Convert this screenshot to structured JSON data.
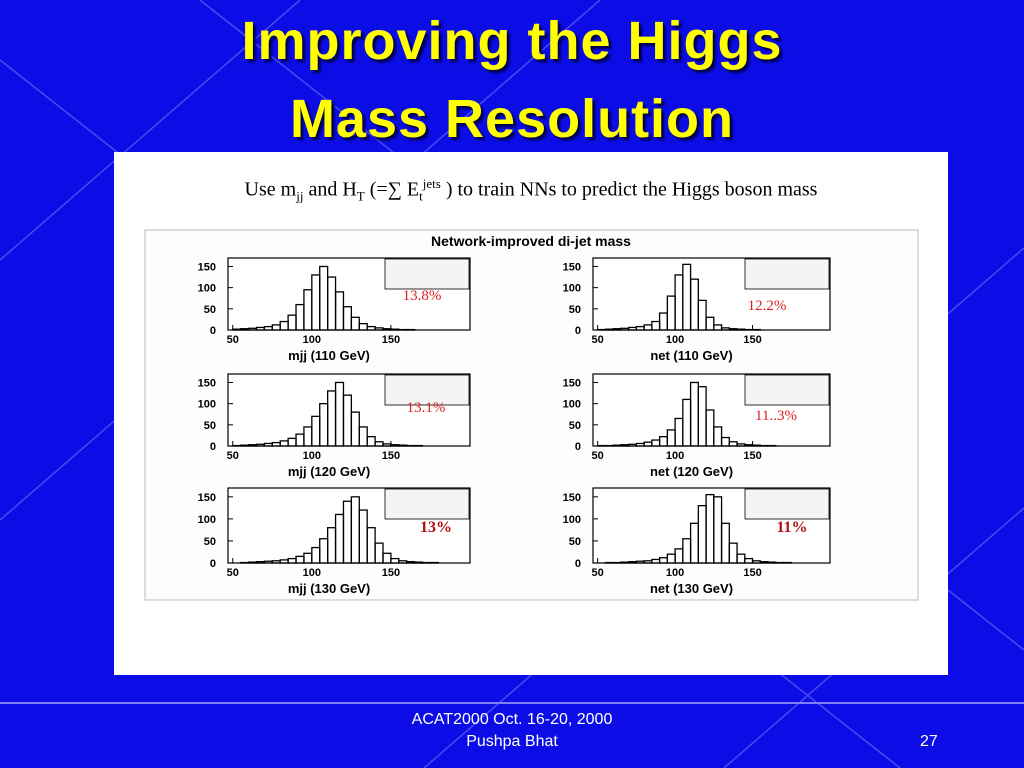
{
  "title": [
    "Improving the Higgs",
    "Mass Resolution"
  ],
  "subtitle": [
    "Use m",
    "jj",
    " and H",
    "T",
    " (=∑ E",
    "t",
    "jets",
    " ) to train NNs to predict the Higgs boson mass"
  ],
  "figure_title": "Network-improved di-jet mass",
  "chart_data": [
    {
      "type": "histogram",
      "xlabel": "mjj (110 GeV)",
      "annotation": "13.8%",
      "bins": [
        50,
        55,
        60,
        65,
        70,
        75,
        80,
        85,
        90,
        95,
        100,
        105,
        110,
        115,
        120,
        125,
        130,
        135,
        140,
        145,
        150,
        155,
        160,
        165,
        170,
        175,
        180,
        185,
        190,
        195,
        200
      ],
      "counts": [
        2,
        3,
        4,
        6,
        8,
        12,
        20,
        35,
        60,
        95,
        130,
        150,
        125,
        90,
        55,
        30,
        15,
        8,
        5,
        3,
        2,
        1,
        1,
        0,
        0,
        0,
        0,
        0,
        0,
        0
      ],
      "xlim": [
        47,
        200
      ],
      "ylim": [
        0,
        170
      ],
      "xticks": [
        50,
        100,
        150
      ],
      "yticks": [
        0,
        50,
        100,
        150
      ]
    },
    {
      "type": "histogram",
      "xlabel": "net (110 GeV)",
      "annotation": "12.2%",
      "bins": [
        50,
        55,
        60,
        65,
        70,
        75,
        80,
        85,
        90,
        95,
        100,
        105,
        110,
        115,
        120,
        125,
        130,
        135,
        140,
        145,
        150,
        155,
        160,
        165,
        170,
        175,
        180,
        185,
        190,
        195,
        200
      ],
      "counts": [
        1,
        2,
        3,
        4,
        6,
        8,
        12,
        20,
        40,
        80,
        130,
        155,
        120,
        70,
        30,
        12,
        5,
        3,
        2,
        1,
        1,
        0,
        0,
        0,
        0,
        0,
        0,
        0,
        0,
        0
      ],
      "xlim": [
        47,
        200
      ],
      "ylim": [
        0,
        170
      ],
      "xticks": [
        50,
        100,
        150
      ],
      "yticks": [
        0,
        50,
        100,
        150
      ]
    },
    {
      "type": "histogram",
      "xlabel": "mjj (120 GeV)",
      "annotation": "13.1%",
      "bins": [
        50,
        55,
        60,
        65,
        70,
        75,
        80,
        85,
        90,
        95,
        100,
        105,
        110,
        115,
        120,
        125,
        130,
        135,
        140,
        145,
        150,
        155,
        160,
        165,
        170,
        175,
        180,
        185,
        190,
        195,
        200
      ],
      "counts": [
        1,
        2,
        3,
        4,
        6,
        8,
        12,
        18,
        28,
        45,
        70,
        100,
        130,
        150,
        120,
        80,
        45,
        22,
        10,
        5,
        3,
        2,
        1,
        1,
        0,
        0,
        0,
        0,
        0,
        0
      ],
      "xlim": [
        47,
        200
      ],
      "ylim": [
        0,
        170
      ],
      "xticks": [
        50,
        100,
        150
      ],
      "yticks": [
        0,
        50,
        100,
        150
      ]
    },
    {
      "type": "histogram",
      "xlabel": "net (120 GeV)",
      "annotation": "11..3%",
      "bins": [
        50,
        55,
        60,
        65,
        70,
        75,
        80,
        85,
        90,
        95,
        100,
        105,
        110,
        115,
        120,
        125,
        130,
        135,
        140,
        145,
        150,
        155,
        160,
        165,
        170,
        175,
        180,
        185,
        190,
        195,
        200
      ],
      "counts": [
        1,
        1,
        2,
        3,
        4,
        6,
        9,
        14,
        22,
        38,
        65,
        110,
        150,
        140,
        85,
        45,
        20,
        10,
        5,
        3,
        2,
        1,
        1,
        0,
        0,
        0,
        0,
        0,
        0,
        0
      ],
      "xlim": [
        47,
        200
      ],
      "ylim": [
        0,
        170
      ],
      "xticks": [
        50,
        100,
        150
      ],
      "yticks": [
        0,
        50,
        100,
        150
      ]
    },
    {
      "type": "histogram",
      "xlabel": "mjj (130 GeV)",
      "annotation": "13%",
      "bins": [
        50,
        55,
        60,
        65,
        70,
        75,
        80,
        85,
        90,
        95,
        100,
        105,
        110,
        115,
        120,
        125,
        130,
        135,
        140,
        145,
        150,
        155,
        160,
        165,
        170,
        175,
        180,
        185,
        190,
        195,
        200
      ],
      "counts": [
        0,
        1,
        2,
        3,
        4,
        5,
        7,
        10,
        15,
        22,
        35,
        55,
        80,
        110,
        140,
        150,
        120,
        80,
        45,
        22,
        10,
        5,
        3,
        2,
        1,
        1,
        0,
        0,
        0,
        0
      ],
      "xlim": [
        47,
        200
      ],
      "ylim": [
        0,
        170
      ],
      "xticks": [
        50,
        100,
        150
      ],
      "yticks": [
        0,
        50,
        100,
        150
      ]
    },
    {
      "type": "histogram",
      "xlabel": "net (130 GeV)",
      "annotation": "11%",
      "bins": [
        50,
        55,
        60,
        65,
        70,
        75,
        80,
        85,
        90,
        95,
        100,
        105,
        110,
        115,
        120,
        125,
        130,
        135,
        140,
        145,
        150,
        155,
        160,
        165,
        170,
        175,
        180,
        185,
        190,
        195,
        200
      ],
      "counts": [
        0,
        1,
        1,
        2,
        3,
        4,
        5,
        8,
        12,
        20,
        32,
        55,
        90,
        130,
        155,
        150,
        90,
        45,
        20,
        10,
        5,
        3,
        2,
        1,
        1,
        0,
        0,
        0,
        0,
        0
      ],
      "xlim": [
        47,
        200
      ],
      "ylim": [
        0,
        170
      ],
      "xticks": [
        50,
        100,
        150
      ],
      "yticks": [
        0,
        50,
        100,
        150
      ]
    }
  ],
  "footer": {
    "event": "ACAT2000  Oct. 16-20, 2000",
    "author": "Pushpa Bhat",
    "page": "27"
  }
}
